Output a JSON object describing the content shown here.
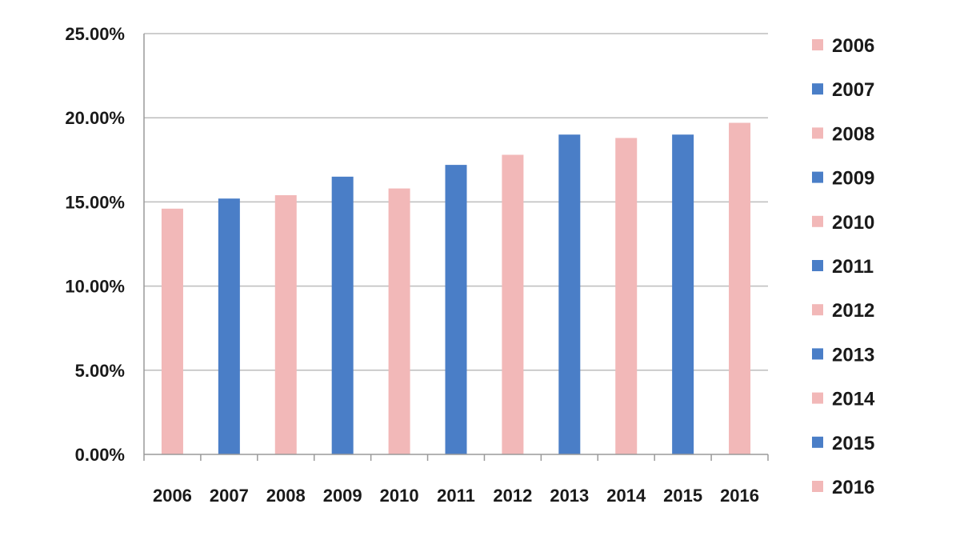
{
  "chart_data": {
    "type": "bar",
    "categories": [
      "2006",
      "2007",
      "2008",
      "2009",
      "2010",
      "2011",
      "2012",
      "2013",
      "2014",
      "2015",
      "2016"
    ],
    "values": [
      0.146,
      0.152,
      0.154,
      0.165,
      0.158,
      0.172,
      0.178,
      0.19,
      0.188,
      0.19,
      0.197
    ],
    "colors": [
      "#f2b8b8",
      "#4a7ec7",
      "#f2b8b8",
      "#4a7ec7",
      "#f2b8b8",
      "#4a7ec7",
      "#f2b8b8",
      "#4a7ec7",
      "#f2b8b8",
      "#4a7ec7",
      "#f2b8b8"
    ],
    "yticks": [
      "0.00%",
      "5.00%",
      "10.00%",
      "15.00%",
      "20.00%",
      "25.00%"
    ],
    "ylim": [
      0,
      0.25
    ],
    "grid": true,
    "legend": {
      "placement": "right",
      "entries": [
        "2006",
        "2007",
        "2008",
        "2009",
        "2010",
        "2011",
        "2012",
        "2013",
        "2014",
        "2015",
        "2016"
      ]
    },
    "title": "",
    "xlabel": "",
    "ylabel": ""
  }
}
